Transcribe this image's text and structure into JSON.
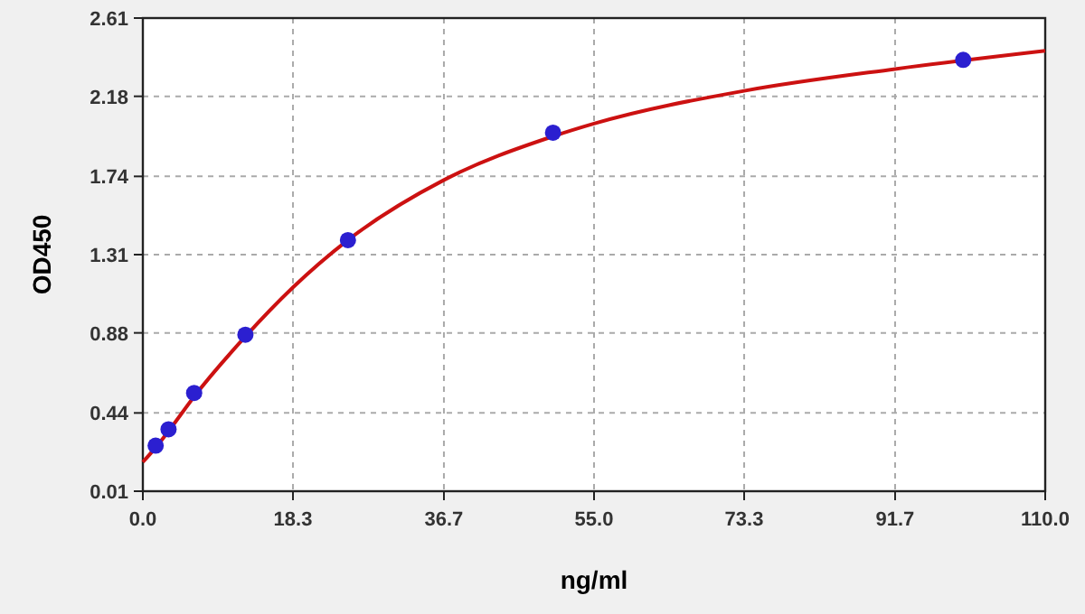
{
  "chart_data": {
    "type": "scatter",
    "xlabel": "ng/ml",
    "ylabel": "OD450",
    "xlim": [
      0,
      110
    ],
    "ylim": [
      0.01,
      2.61
    ],
    "xticks": [
      {
        "value": 0,
        "label": "0.0"
      },
      18.3,
      36.7,
      {
        "value": 55,
        "label": "55.0"
      },
      73.3,
      91.7,
      {
        "value": 110,
        "label": "110.0"
      }
    ],
    "yticks": [
      0.01,
      0.44,
      0.88,
      1.31,
      1.74,
      2.18,
      2.61
    ],
    "grid": true,
    "series": [
      {
        "type": "line",
        "color": "#cc1111",
        "marker": "none",
        "line_style": "solid",
        "x": [
          0,
          1.56,
          3.13,
          6.25,
          12.5,
          18.3,
          25,
          36.7,
          50,
          55,
          73.3,
          91.7,
          110
        ],
        "values": [
          0.17,
          0.25,
          0.34,
          0.53,
          0.86,
          1.13,
          1.39,
          1.72,
          1.96,
          2.03,
          2.21,
          2.33,
          2.43
        ]
      },
      {
        "color": "#2b1fd0",
        "marker": "circle",
        "x": [
          1.56,
          3.13,
          6.25,
          12.5,
          25,
          50,
          100
        ],
        "values": [
          0.26,
          0.35,
          0.55,
          0.87,
          1.39,
          1.98,
          2.38
        ]
      }
    ]
  }
}
